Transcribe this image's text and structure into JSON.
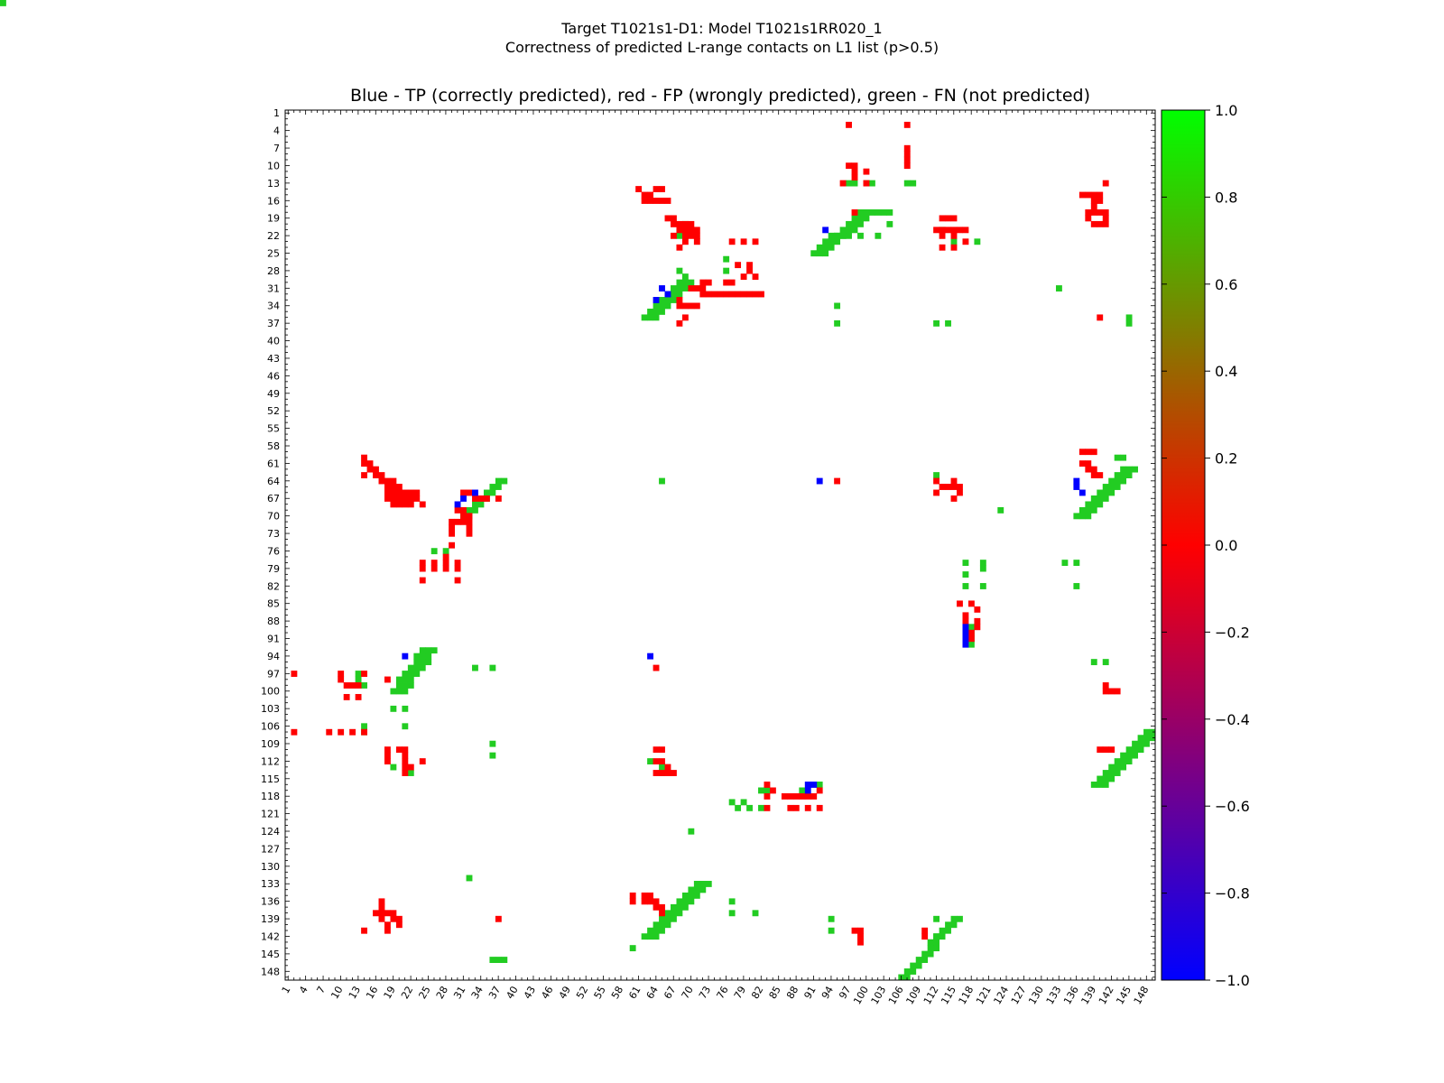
{
  "header": {
    "title_line1": "Target T1021s1-D1: Model T1021s1RR020_1",
    "title_line2": "Correctness of predicted L-range contacts on L1 list (p>0.5)"
  },
  "colors": {
    "tp": "#0000ff",
    "fp": "#ff0000",
    "fn": "#22cc22"
  },
  "chart_data": {
    "type": "heatmap",
    "title": "Blue - TP (correctly predicted), red - FP (wrongly predicted), green - FN (not predicted)",
    "xlabel": "",
    "ylabel": "",
    "xlim": [
      1,
      149
    ],
    "ylim": [
      1,
      149
    ],
    "x_ticks": [
      1,
      4,
      7,
      10,
      13,
      16,
      19,
      22,
      25,
      28,
      31,
      34,
      37,
      40,
      43,
      46,
      49,
      52,
      55,
      58,
      61,
      64,
      67,
      70,
      73,
      76,
      79,
      82,
      85,
      88,
      91,
      94,
      97,
      100,
      103,
      106,
      109,
      112,
      115,
      118,
      121,
      124,
      127,
      130,
      133,
      136,
      139,
      142,
      145,
      148
    ],
    "y_ticks": [
      1,
      4,
      7,
      10,
      13,
      16,
      19,
      22,
      25,
      28,
      31,
      34,
      37,
      40,
      43,
      46,
      49,
      52,
      55,
      58,
      61,
      64,
      67,
      70,
      73,
      76,
      79,
      82,
      85,
      88,
      91,
      94,
      97,
      100,
      103,
      106,
      109,
      112,
      115,
      118,
      121,
      124,
      127,
      130,
      133,
      136,
      139,
      142,
      145,
      148
    ],
    "colorbar": {
      "min": -1.0,
      "max": 1.0,
      "ticks": [
        "1.0",
        "0.8",
        "0.6",
        "0.4",
        "0.2",
        "0.0",
        "−0.2",
        "−0.4",
        "−0.6",
        "−0.8",
        "−1.0"
      ],
      "stops": [
        "#0000ff",
        "#ff0000",
        "#00ff00"
      ]
    },
    "legend": "none",
    "grid": false,
    "cells": {
      "tp": [
        [
          93,
          21
        ],
        [
          65,
          31
        ],
        [
          64,
          33
        ],
        [
          66,
          32
        ],
        [
          33,
          66
        ],
        [
          31,
          67
        ],
        [
          30,
          68
        ],
        [
          21,
          94
        ],
        [
          63,
          94
        ],
        [
          92,
          64
        ],
        [
          90,
          116
        ],
        [
          91,
          116
        ],
        [
          90,
          117
        ],
        [
          117,
          89
        ],
        [
          117,
          90
        ],
        [
          117,
          91
        ],
        [
          117,
          92
        ],
        [
          136,
          64
        ],
        [
          136,
          65
        ],
        [
          137,
          66
        ]
      ],
      "fp": [
        [
          97,
          3
        ],
        [
          107,
          3
        ],
        [
          107,
          7
        ],
        [
          107,
          8
        ],
        [
          107,
          9
        ],
        [
          107,
          10
        ],
        [
          97,
          10
        ],
        [
          98,
          10
        ],
        [
          98,
          11
        ],
        [
          100,
          11
        ],
        [
          98,
          12
        ],
        [
          96,
          13
        ],
        [
          100,
          13
        ],
        [
          61,
          14
        ],
        [
          62,
          15
        ],
        [
          63,
          15
        ],
        [
          64,
          14
        ],
        [
          65,
          14
        ],
        [
          62,
          16
        ],
        [
          63,
          16
        ],
        [
          64,
          16
        ],
        [
          65,
          16
        ],
        [
          66,
          16
        ],
        [
          98,
          18
        ],
        [
          66,
          19
        ],
        [
          67,
          19
        ],
        [
          67,
          20
        ],
        [
          68,
          20
        ],
        [
          69,
          20
        ],
        [
          70,
          20
        ],
        [
          68,
          21
        ],
        [
          69,
          21
        ],
        [
          70,
          21
        ],
        [
          71,
          21
        ],
        [
          69,
          22
        ],
        [
          70,
          22
        ],
        [
          71,
          22
        ],
        [
          69,
          23
        ],
        [
          71,
          23
        ],
        [
          77,
          23
        ],
        [
          79,
          23
        ],
        [
          81,
          23
        ],
        [
          68,
          24
        ],
        [
          67,
          22
        ],
        [
          78,
          27
        ],
        [
          80,
          27
        ],
        [
          80,
          28
        ],
        [
          79,
          29
        ],
        [
          81,
          29
        ],
        [
          76,
          30
        ],
        [
          77,
          30
        ],
        [
          72,
          30
        ],
        [
          73,
          30
        ],
        [
          70,
          31
        ],
        [
          71,
          31
        ],
        [
          72,
          31
        ],
        [
          72,
          32
        ],
        [
          73,
          32
        ],
        [
          74,
          32
        ],
        [
          75,
          32
        ],
        [
          76,
          32
        ],
        [
          77,
          32
        ],
        [
          78,
          32
        ],
        [
          79,
          32
        ],
        [
          80,
          32
        ],
        [
          81,
          32
        ],
        [
          82,
          32
        ],
        [
          68,
          33
        ],
        [
          68,
          34
        ],
        [
          69,
          34
        ],
        [
          70,
          34
        ],
        [
          71,
          34
        ],
        [
          69,
          36
        ],
        [
          68,
          37
        ],
        [
          113,
          19
        ],
        [
          114,
          19
        ],
        [
          115,
          19
        ],
        [
          112,
          21
        ],
        [
          113,
          21
        ],
        [
          114,
          21
        ],
        [
          115,
          21
        ],
        [
          116,
          21
        ],
        [
          117,
          21
        ],
        [
          113,
          22
        ],
        [
          115,
          22
        ],
        [
          117,
          23
        ],
        [
          113,
          24
        ],
        [
          115,
          24
        ],
        [
          137,
          15
        ],
        [
          138,
          15
        ],
        [
          139,
          15
        ],
        [
          140,
          15
        ],
        [
          139,
          16
        ],
        [
          140,
          16
        ],
        [
          139,
          17
        ],
        [
          138,
          18
        ],
        [
          139,
          18
        ],
        [
          140,
          18
        ],
        [
          141,
          18
        ],
        [
          138,
          19
        ],
        [
          141,
          19
        ],
        [
          139,
          20
        ],
        [
          140,
          20
        ],
        [
          141,
          20
        ],
        [
          141,
          13
        ],
        [
          140,
          36
        ],
        [
          14,
          60
        ],
        [
          14,
          61
        ],
        [
          15,
          61
        ],
        [
          15,
          62
        ],
        [
          16,
          62
        ],
        [
          14,
          63
        ],
        [
          16,
          63
        ],
        [
          17,
          63
        ],
        [
          17,
          64
        ],
        [
          18,
          64
        ],
        [
          19,
          64
        ],
        [
          18,
          65
        ],
        [
          19,
          65
        ],
        [
          20,
          65
        ],
        [
          18,
          66
        ],
        [
          19,
          66
        ],
        [
          20,
          66
        ],
        [
          21,
          66
        ],
        [
          22,
          66
        ],
        [
          23,
          66
        ],
        [
          18,
          67
        ],
        [
          19,
          67
        ],
        [
          20,
          67
        ],
        [
          21,
          67
        ],
        [
          22,
          67
        ],
        [
          23,
          67
        ],
        [
          19,
          68
        ],
        [
          20,
          68
        ],
        [
          21,
          68
        ],
        [
          22,
          68
        ],
        [
          24,
          68
        ],
        [
          31,
          66
        ],
        [
          32,
          66
        ],
        [
          33,
          67
        ],
        [
          34,
          67
        ],
        [
          35,
          67
        ],
        [
          37,
          67
        ],
        [
          30,
          69
        ],
        [
          31,
          69
        ],
        [
          31,
          70
        ],
        [
          32,
          70
        ],
        [
          29,
          71
        ],
        [
          30,
          71
        ],
        [
          31,
          71
        ],
        [
          32,
          71
        ],
        [
          29,
          72
        ],
        [
          32,
          72
        ],
        [
          29,
          73
        ],
        [
          32,
          73
        ],
        [
          29,
          75
        ],
        [
          28,
          77
        ],
        [
          24,
          78
        ],
        [
          26,
          78
        ],
        [
          28,
          78
        ],
        [
          30,
          78
        ],
        [
          24,
          79
        ],
        [
          26,
          79
        ],
        [
          28,
          79
        ],
        [
          30,
          79
        ],
        [
          24,
          81
        ],
        [
          30,
          81
        ],
        [
          95,
          64
        ],
        [
          112,
          64
        ],
        [
          115,
          64
        ],
        [
          113,
          65
        ],
        [
          114,
          65
        ],
        [
          115,
          65
        ],
        [
          116,
          65
        ],
        [
          112,
          66
        ],
        [
          116,
          66
        ],
        [
          115,
          67
        ],
        [
          137,
          59
        ],
        [
          138,
          59
        ],
        [
          139,
          59
        ],
        [
          137,
          61
        ],
        [
          138,
          61
        ],
        [
          138,
          62
        ],
        [
          139,
          62
        ],
        [
          139,
          63
        ],
        [
          140,
          63
        ],
        [
          116,
          85
        ],
        [
          118,
          85
        ],
        [
          119,
          86
        ],
        [
          117,
          87
        ],
        [
          117,
          88
        ],
        [
          119,
          88
        ],
        [
          117,
          89
        ],
        [
          119,
          89
        ],
        [
          118,
          90
        ],
        [
          118,
          91
        ],
        [
          2,
          97
        ],
        [
          10,
          97
        ],
        [
          10,
          98
        ],
        [
          11,
          99
        ],
        [
          12,
          99
        ],
        [
          13,
          99
        ],
        [
          11,
          101
        ],
        [
          13,
          101
        ],
        [
          14,
          97
        ],
        [
          18,
          98
        ],
        [
          2,
          107
        ],
        [
          8,
          107
        ],
        [
          10,
          107
        ],
        [
          12,
          107
        ],
        [
          14,
          107
        ],
        [
          18,
          110
        ],
        [
          20,
          110
        ],
        [
          21,
          110
        ],
        [
          18,
          111
        ],
        [
          21,
          111
        ],
        [
          18,
          112
        ],
        [
          21,
          112
        ],
        [
          24,
          112
        ],
        [
          21,
          113
        ],
        [
          22,
          113
        ],
        [
          21,
          114
        ],
        [
          64,
          96
        ],
        [
          64,
          110
        ],
        [
          65,
          110
        ],
        [
          64,
          112
        ],
        [
          65,
          112
        ],
        [
          66,
          113
        ],
        [
          64,
          114
        ],
        [
          65,
          114
        ],
        [
          66,
          114
        ],
        [
          67,
          114
        ],
        [
          141,
          99
        ],
        [
          141,
          100
        ],
        [
          142,
          100
        ],
        [
          143,
          100
        ],
        [
          140,
          110
        ],
        [
          141,
          110
        ],
        [
          142,
          110
        ],
        [
          83,
          116
        ],
        [
          84,
          117
        ],
        [
          86,
          118
        ],
        [
          87,
          118
        ],
        [
          88,
          118
        ],
        [
          89,
          118
        ],
        [
          90,
          118
        ],
        [
          91,
          118
        ],
        [
          92,
          117
        ],
        [
          83,
          118
        ],
        [
          83,
          120
        ],
        [
          87,
          120
        ],
        [
          88,
          120
        ],
        [
          90,
          120
        ],
        [
          92,
          120
        ],
        [
          17,
          136
        ],
        [
          17,
          137
        ],
        [
          16,
          138
        ],
        [
          17,
          138
        ],
        [
          18,
          138
        ],
        [
          19,
          138
        ],
        [
          17,
          139
        ],
        [
          19,
          139
        ],
        [
          20,
          139
        ],
        [
          18,
          140
        ],
        [
          20,
          140
        ],
        [
          14,
          141
        ],
        [
          18,
          141
        ],
        [
          37,
          139
        ],
        [
          60,
          135
        ],
        [
          60,
          136
        ],
        [
          62,
          135
        ],
        [
          62,
          136
        ],
        [
          63,
          135
        ],
        [
          63,
          136
        ],
        [
          64,
          136
        ],
        [
          64,
          137
        ],
        [
          65,
          137
        ],
        [
          65,
          138
        ],
        [
          98,
          141
        ],
        [
          99,
          141
        ],
        [
          99,
          142
        ],
        [
          99,
          143
        ],
        [
          110,
          141
        ],
        [
          110,
          142
        ]
      ]
    }
  }
}
